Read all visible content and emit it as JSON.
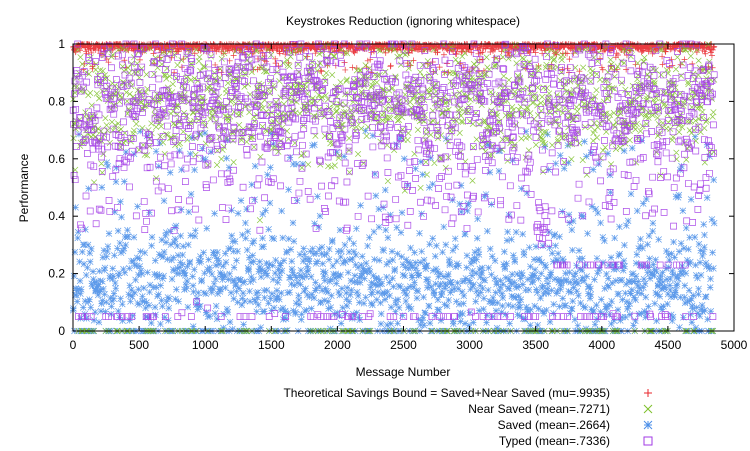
{
  "chart_data": {
    "type": "scatter",
    "title": "Keystrokes Reduction (ignoring whitespace)",
    "xlabel": "Message Number",
    "ylabel": "Performance",
    "xlim": [
      0,
      5000
    ],
    "ylim": [
      0,
      1
    ],
    "x_ticks": [
      0,
      500,
      1000,
      1500,
      2000,
      2500,
      3000,
      3500,
      4000,
      4500,
      5000
    ],
    "y_ticks": [
      0,
      0.2,
      0.4,
      0.6,
      0.8,
      1
    ],
    "grid": false,
    "legend_position": "bottom-right",
    "n_messages": 4850,
    "series": [
      {
        "name": "Theoretical Savings Bound = Saved+Near Saved (mu=.9935)",
        "marker": "plus",
        "color": "#e8262b",
        "mean": 0.9935,
        "sample_points": [
          [
            50,
            1
          ],
          [
            500,
            1
          ],
          [
            1200,
            0.99
          ],
          [
            2000,
            1
          ],
          [
            2600,
            0.98
          ],
          [
            3300,
            1
          ],
          [
            4000,
            0.99
          ],
          [
            4800,
            1
          ]
        ]
      },
      {
        "name": "Near Saved (mean=.7271)",
        "marker": "x",
        "color": "#7ec12b",
        "mean": 0.7271,
        "sample_points": [
          [
            120,
            0.82
          ],
          [
            700,
            0.75
          ],
          [
            1500,
            0.68
          ],
          [
            2300,
            0.8
          ],
          [
            3100,
            0.7
          ],
          [
            3900,
            0.77
          ],
          [
            4600,
            0.73
          ]
        ]
      },
      {
        "name": "Saved (mean=.2664)",
        "marker": "asterisk",
        "color": "#4b8fe8",
        "mean": 0.2664,
        "sample_points": [
          [
            100,
            0.15
          ],
          [
            600,
            0.3
          ],
          [
            1400,
            0.2
          ],
          [
            2200,
            0.25
          ],
          [
            3000,
            0.35
          ],
          [
            3800,
            0.22
          ],
          [
            4700,
            0.18
          ]
        ]
      },
      {
        "name": "Typed (mean=.7336)",
        "marker": "square",
        "color": "#a23ae6",
        "mean": 0.7336,
        "sample_points": [
          [
            80,
            0.85
          ],
          [
            800,
            0.8
          ],
          [
            1600,
            0.7
          ],
          [
            2400,
            0.82
          ],
          [
            3200,
            0.75
          ],
          [
            4100,
            0.8
          ],
          [
            4800,
            0.84
          ]
        ],
        "plateau_value": 0.23
      }
    ]
  }
}
